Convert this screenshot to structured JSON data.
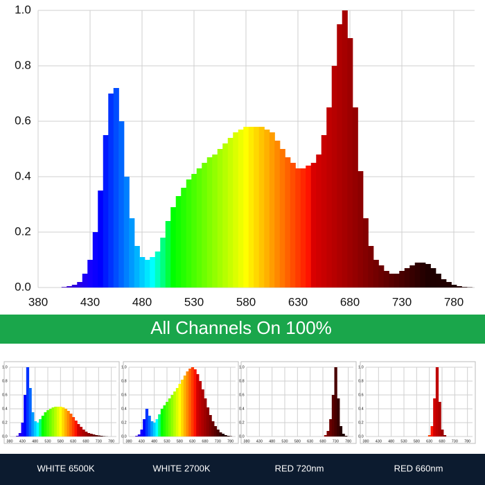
{
  "banner": "All Channels On 100%",
  "chart_data": [
    {
      "type": "spectrum",
      "x": [
        380,
        385,
        390,
        395,
        400,
        405,
        410,
        415,
        420,
        425,
        430,
        435,
        440,
        445,
        450,
        455,
        460,
        465,
        470,
        475,
        480,
        485,
        490,
        495,
        500,
        505,
        510,
        515,
        520,
        525,
        530,
        535,
        540,
        545,
        550,
        555,
        560,
        565,
        570,
        575,
        580,
        585,
        590,
        595,
        600,
        605,
        610,
        615,
        620,
        625,
        630,
        635,
        640,
        645,
        650,
        655,
        660,
        665,
        670,
        675,
        680,
        685,
        690,
        695,
        700,
        705,
        710,
        715,
        720,
        725,
        730,
        735,
        740,
        745,
        750,
        755,
        760,
        765,
        770,
        775,
        780,
        785,
        790,
        795,
        800
      ],
      "values": [
        0,
        0,
        0,
        0,
        0,
        0.002,
        0.005,
        0.01,
        0.02,
        0.05,
        0.1,
        0.2,
        0.35,
        0.55,
        0.7,
        0.72,
        0.6,
        0.4,
        0.25,
        0.15,
        0.11,
        0.1,
        0.11,
        0.13,
        0.18,
        0.24,
        0.29,
        0.33,
        0.36,
        0.39,
        0.41,
        0.43,
        0.45,
        0.47,
        0.48,
        0.5,
        0.52,
        0.54,
        0.56,
        0.57,
        0.58,
        0.58,
        0.58,
        0.58,
        0.57,
        0.56,
        0.53,
        0.5,
        0.47,
        0.45,
        0.43,
        0.43,
        0.44,
        0.45,
        0.48,
        0.55,
        0.65,
        0.8,
        0.95,
        1.0,
        0.9,
        0.65,
        0.42,
        0.25,
        0.15,
        0.1,
        0.08,
        0.06,
        0.05,
        0.05,
        0.06,
        0.07,
        0.08,
        0.09,
        0.09,
        0.085,
        0.07,
        0.05,
        0.03,
        0.02,
        0.01,
        0.005,
        0.002,
        0.001,
        0
      ],
      "xlim": [
        380,
        800
      ],
      "xticks": [
        380,
        430,
        480,
        530,
        580,
        630,
        680,
        730,
        780
      ],
      "ylim": [
        0,
        1
      ],
      "yticks": [
        {
          "value": 0,
          "label": "0.0"
        },
        0.2,
        0.4,
        0.6,
        0.8,
        {
          "value": 1,
          "label": "1.0"
        }
      ],
      "grid": true
    },
    {
      "type": "spectrum",
      "title": "WHITE 6500K",
      "x": [
        380,
        390,
        400,
        410,
        420,
        430,
        440,
        450,
        460,
        470,
        480,
        490,
        500,
        510,
        520,
        530,
        540,
        550,
        560,
        570,
        580,
        590,
        600,
        610,
        620,
        630,
        640,
        650,
        660,
        670,
        680,
        690,
        700,
        710,
        720,
        730,
        740,
        750,
        760,
        770,
        780,
        790,
        800
      ],
      "values": [
        0,
        0,
        0,
        0.01,
        0.05,
        0.2,
        0.6,
        1.0,
        0.7,
        0.35,
        0.22,
        0.2,
        0.25,
        0.3,
        0.35,
        0.38,
        0.4,
        0.42,
        0.43,
        0.43,
        0.43,
        0.42,
        0.4,
        0.37,
        0.33,
        0.28,
        0.23,
        0.18,
        0.14,
        0.1,
        0.07,
        0.05,
        0.04,
        0.03,
        0.02,
        0.015,
        0.01,
        0.005,
        0.002,
        0,
        0,
        0,
        0
      ],
      "xlim": [
        380,
        800
      ],
      "xticks": [
        380,
        430,
        480,
        530,
        580,
        630,
        680,
        730,
        780
      ],
      "ylim": [
        0,
        1
      ],
      "yticks": [
        {
          "value": 0,
          "label": "0.0"
        },
        0.2,
        0.4,
        0.6,
        0.8,
        {
          "value": 1,
          "label": "1.0"
        }
      ],
      "grid": true
    },
    {
      "type": "spectrum",
      "title": "WHITE 2700K",
      "x": [
        380,
        390,
        400,
        410,
        420,
        430,
        440,
        450,
        460,
        470,
        480,
        490,
        500,
        510,
        520,
        530,
        540,
        550,
        560,
        570,
        580,
        590,
        600,
        610,
        620,
        630,
        640,
        650,
        660,
        670,
        680,
        690,
        700,
        710,
        720,
        730,
        740,
        750,
        760,
        770,
        780,
        790,
        800
      ],
      "values": [
        0,
        0,
        0,
        0.01,
        0.03,
        0.1,
        0.25,
        0.4,
        0.3,
        0.22,
        0.2,
        0.25,
        0.32,
        0.4,
        0.45,
        0.5,
        0.55,
        0.6,
        0.65,
        0.7,
        0.76,
        0.82,
        0.88,
        0.94,
        0.98,
        1.0,
        0.97,
        0.9,
        0.8,
        0.68,
        0.55,
        0.42,
        0.31,
        0.22,
        0.15,
        0.1,
        0.06,
        0.04,
        0.02,
        0.01,
        0.005,
        0,
        0
      ],
      "xlim": [
        380,
        800
      ],
      "xticks": [
        380,
        430,
        480,
        530,
        580,
        630,
        680,
        730,
        780
      ],
      "ylim": [
        0,
        1
      ],
      "yticks": [
        {
          "value": 0,
          "label": "0.0"
        },
        0.2,
        0.4,
        0.6,
        0.8,
        {
          "value": 1,
          "label": "1.0"
        }
      ],
      "grid": true
    },
    {
      "type": "spectrum",
      "title": "RED 720nm",
      "x": [
        380,
        390,
        400,
        410,
        420,
        430,
        440,
        450,
        460,
        470,
        480,
        490,
        500,
        510,
        520,
        530,
        540,
        550,
        560,
        570,
        580,
        590,
        600,
        610,
        620,
        630,
        640,
        650,
        660,
        670,
        680,
        690,
        700,
        710,
        720,
        730,
        740,
        750,
        760,
        770,
        780,
        790,
        800
      ],
      "values": [
        0,
        0,
        0,
        0,
        0,
        0,
        0,
        0,
        0,
        0,
        0,
        0,
        0,
        0,
        0,
        0,
        0,
        0,
        0,
        0,
        0,
        0,
        0,
        0,
        0,
        0,
        0,
        0,
        0,
        0,
        0,
        0.02,
        0.08,
        0.25,
        0.6,
        1.0,
        0.55,
        0.15,
        0.04,
        0.01,
        0,
        0,
        0
      ],
      "xlim": [
        380,
        800
      ],
      "xticks": [
        380,
        430,
        480,
        530,
        580,
        630,
        680,
        730,
        780
      ],
      "ylim": [
        0,
        1
      ],
      "yticks": [
        {
          "value": 0,
          "label": "0.0"
        },
        0.2,
        0.4,
        0.6,
        0.8,
        {
          "value": 1,
          "label": "1.0"
        }
      ],
      "grid": true
    },
    {
      "type": "spectrum",
      "title": "RED 660nm",
      "x": [
        380,
        390,
        400,
        410,
        420,
        430,
        440,
        450,
        460,
        470,
        480,
        490,
        500,
        510,
        520,
        530,
        540,
        550,
        560,
        570,
        580,
        590,
        600,
        610,
        620,
        630,
        640,
        650,
        660,
        670,
        680,
        690,
        700,
        710,
        720,
        730,
        740,
        750,
        760,
        770,
        780,
        790,
        800
      ],
      "values": [
        0,
        0,
        0,
        0,
        0,
        0,
        0,
        0,
        0,
        0,
        0,
        0,
        0,
        0,
        0,
        0,
        0,
        0,
        0,
        0,
        0,
        0,
        0,
        0,
        0,
        0.02,
        0.15,
        0.55,
        1.0,
        0.5,
        0.1,
        0.02,
        0,
        0,
        0,
        0,
        0,
        0,
        0,
        0,
        0,
        0,
        0
      ],
      "xlim": [
        380,
        800
      ],
      "xticks": [
        380,
        430,
        480,
        530,
        580,
        630,
        680,
        730,
        780
      ],
      "ylim": [
        0,
        1
      ],
      "yticks": [
        {
          "value": 0,
          "label": "0.0"
        },
        0.2,
        0.4,
        0.6,
        0.8,
        {
          "value": 1,
          "label": "1.0"
        }
      ],
      "grid": true
    }
  ]
}
